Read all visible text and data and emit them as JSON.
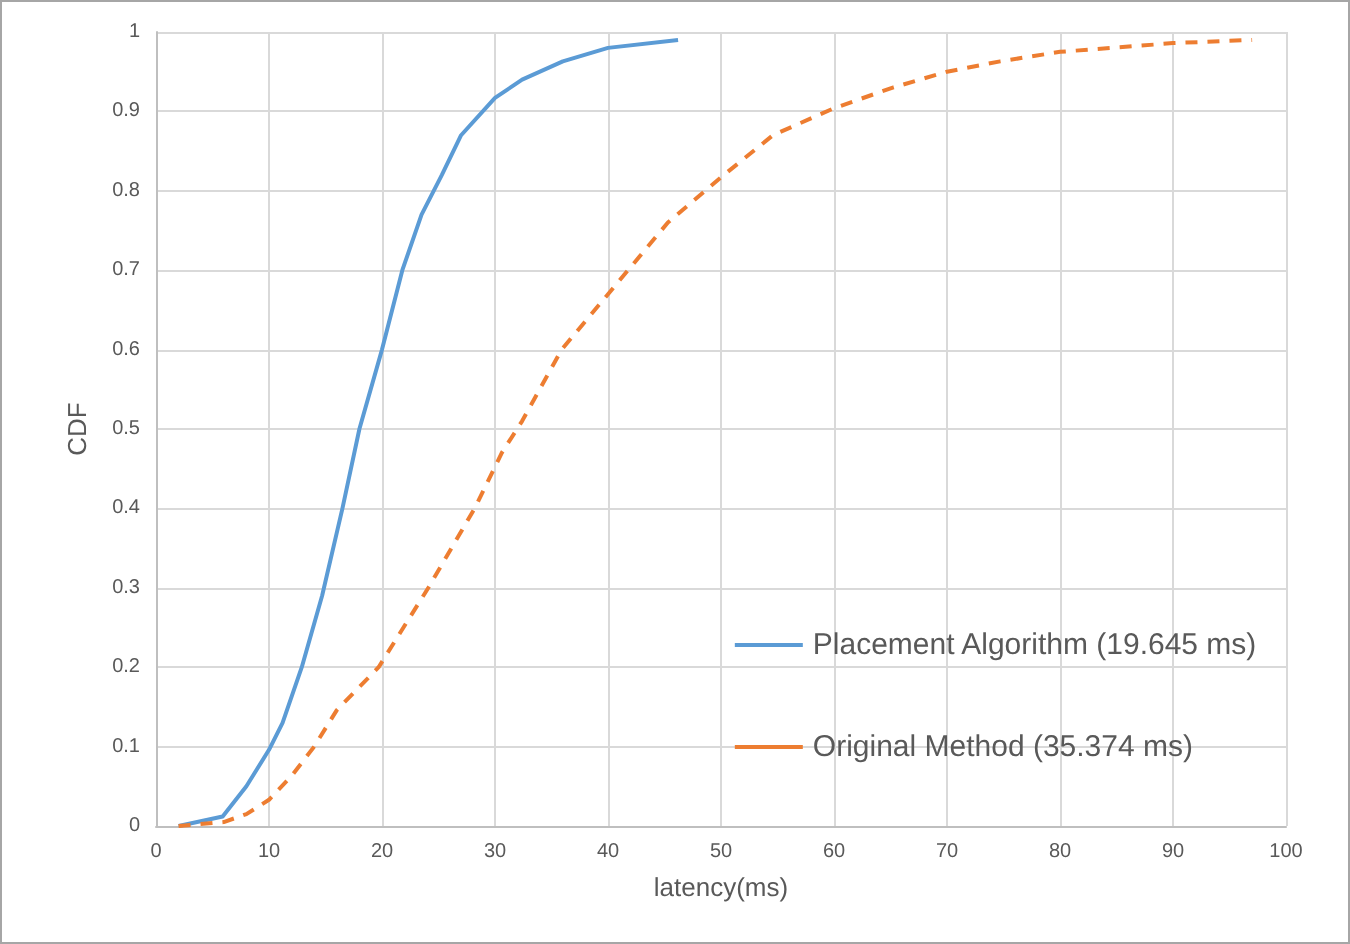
{
  "chart_data": {
    "type": "line",
    "xlabel": "latency(ms)",
    "ylabel": "CDF",
    "xlim": [
      0,
      100
    ],
    "xticks": [
      0,
      10,
      20,
      30,
      40,
      50,
      60,
      70,
      80,
      90,
      100
    ],
    "ylim": [
      0,
      1
    ],
    "yticks": [
      0,
      0.1,
      0.2,
      0.3,
      0.4,
      0.5,
      0.6,
      0.7,
      0.8,
      0.9,
      1
    ],
    "grid": true,
    "legend": "bottom right",
    "marker": "none",
    "series": [
      {
        "name": "Placement Algorithm (19.645 ms)",
        "color": "#5b9bd5",
        "line_style": "solid",
        "x": [
          2,
          5.9,
          8,
          10,
          11.2,
          12.9,
          14.7,
          16.5,
          18,
          20,
          21.8,
          23.5,
          25.3,
          27,
          30,
          32.4,
          36,
          40,
          46.2
        ],
        "values": [
          0,
          0.012,
          0.05,
          0.096,
          0.13,
          0.2,
          0.29,
          0.4,
          0.5,
          0.6,
          0.7,
          0.77,
          0.82,
          0.87,
          0.917,
          0.94,
          0.963,
          0.98,
          0.99
        ]
      },
      {
        "name": "Original Method (35.374 ms)",
        "color": "#ed7d31",
        "line_style": "dashed",
        "x": [
          2,
          6,
          8,
          10,
          12,
          14,
          16,
          19.7,
          24.1,
          28.2,
          30.6,
          32.4,
          35.9,
          40.6,
          45.3,
          50,
          54.6,
          60,
          65.2,
          70,
          74.7,
          80,
          90,
          97
        ],
        "values": [
          0,
          0.005,
          0.015,
          0.033,
          0.063,
          0.1,
          0.146,
          0.2,
          0.3,
          0.4,
          0.47,
          0.51,
          0.6,
          0.68,
          0.76,
          0.817,
          0.87,
          0.904,
          0.93,
          0.95,
          0.963,
          0.975,
          0.986,
          0.99
        ]
      }
    ]
  }
}
